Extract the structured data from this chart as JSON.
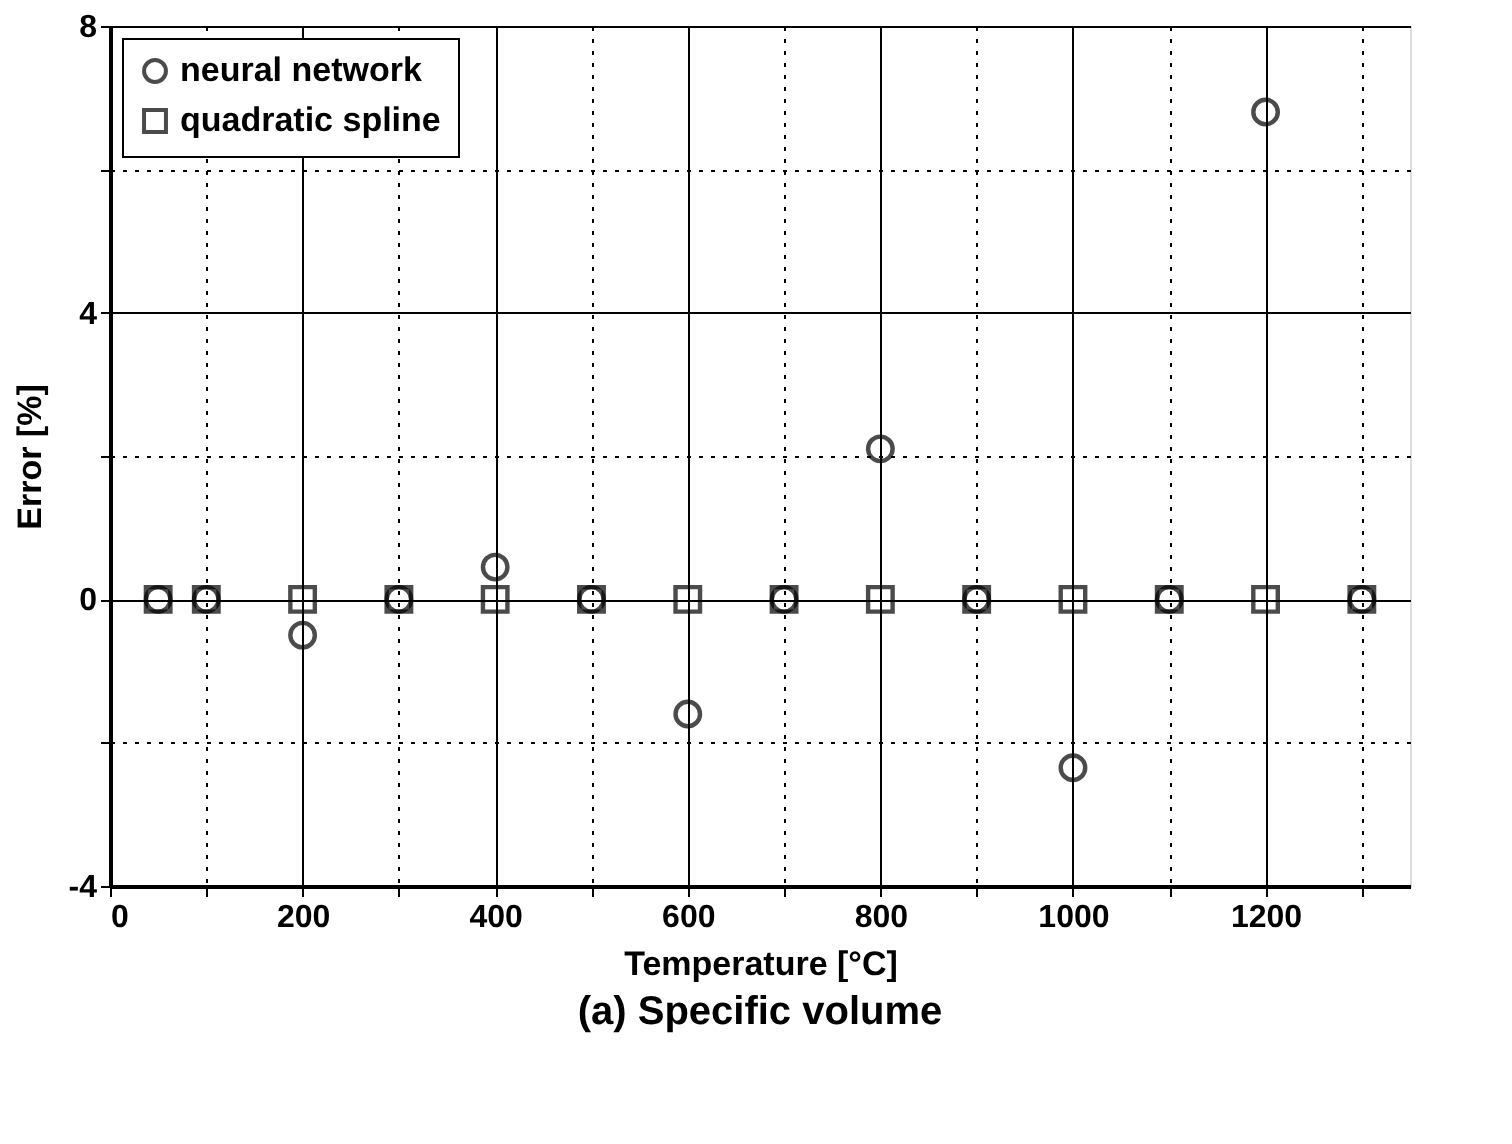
{
  "chart_data": {
    "type": "scatter",
    "title": "(a) Specific volume",
    "xlabel": "Temperature [°C]",
    "ylabel": "Error [%]",
    "xlim": [
      0,
      1350
    ],
    "ylim": [
      -4,
      8
    ],
    "xticks": [
      0,
      {
        "value": 100,
        "label": null
      },
      200,
      {
        "value": 300,
        "label": null
      },
      400,
      {
        "value": 500,
        "label": null
      },
      600,
      {
        "value": 700,
        "label": null
      },
      800,
      {
        "value": 900,
        "label": null
      },
      1000,
      {
        "value": 1100,
        "label": null
      },
      1200,
      {
        "value": 1300,
        "label": null
      }
    ],
    "yticks": [
      -4,
      {
        "value": -2,
        "label": null
      },
      0,
      {
        "value": 2,
        "label": null
      },
      4,
      {
        "value": 6,
        "label": null
      },
      8
    ],
    "grid": true,
    "legend": "top left",
    "series": [
      {
        "name": "neural network",
        "color": "#000000",
        "marker": "circle",
        "x": [
          50,
          100,
          200,
          300,
          400,
          500,
          600,
          700,
          800,
          900,
          1000,
          1100,
          1200,
          1300
        ],
        "values": [
          0,
          0,
          -0.5,
          0,
          0.45,
          0,
          -1.6,
          0,
          2.1,
          0,
          -2.35,
          0,
          6.8,
          0
        ]
      },
      {
        "name": "quadratic spline",
        "color": "#000000",
        "marker": "square",
        "x": [
          50,
          100,
          200,
          300,
          400,
          500,
          600,
          700,
          800,
          900,
          1000,
          1100,
          1200,
          1300
        ],
        "values": [
          0,
          0,
          0,
          0,
          0,
          0,
          0,
          0,
          0,
          0,
          0,
          0,
          0,
          0
        ]
      }
    ]
  }
}
